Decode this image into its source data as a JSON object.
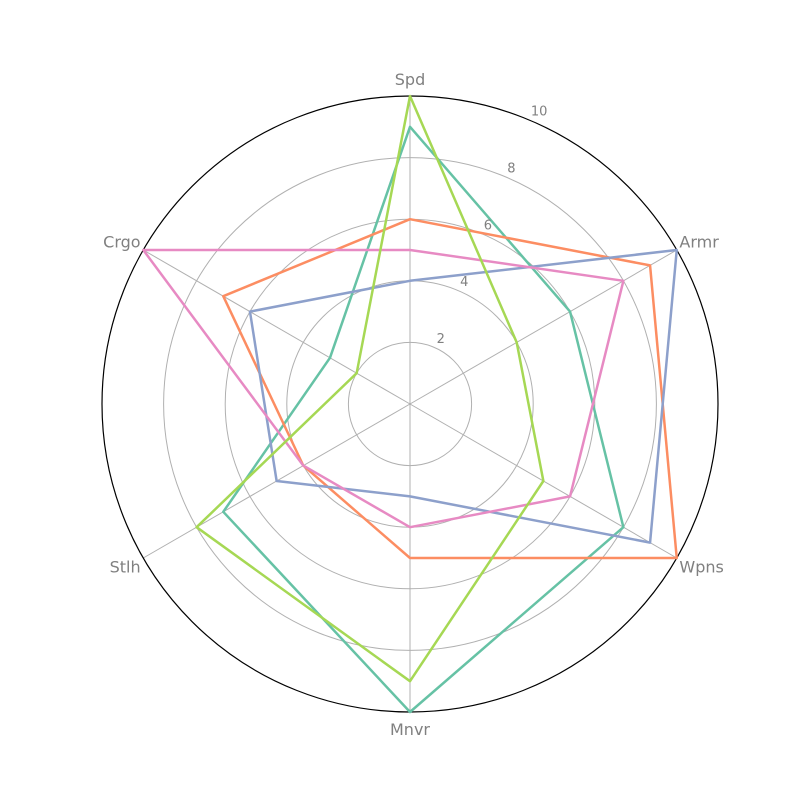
{
  "chart_data": {
    "type": "radar",
    "title": "",
    "axes": [
      "Spd",
      "Armr",
      "Wpns",
      "Mnvr",
      "Stlh",
      "Crgo"
    ],
    "rlim": [
      0,
      10
    ],
    "radial_ticks": [
      2,
      4,
      6,
      8,
      10
    ],
    "grid": true,
    "legend": "none",
    "series": [
      {
        "color": "#66c2a5",
        "values": [
          9,
          6,
          8,
          10,
          7,
          3
        ]
      },
      {
        "color": "#fc8d62",
        "values": [
          6,
          9,
          10,
          5,
          4,
          7
        ]
      },
      {
        "color": "#8da0cb",
        "values": [
          4,
          10,
          9,
          3,
          5,
          6
        ]
      },
      {
        "color": "#e78ac3",
        "values": [
          5,
          8,
          6,
          4,
          4,
          10
        ]
      },
      {
        "color": "#a6d854",
        "values": [
          10,
          4,
          5,
          9,
          8,
          2
        ]
      }
    ]
  }
}
